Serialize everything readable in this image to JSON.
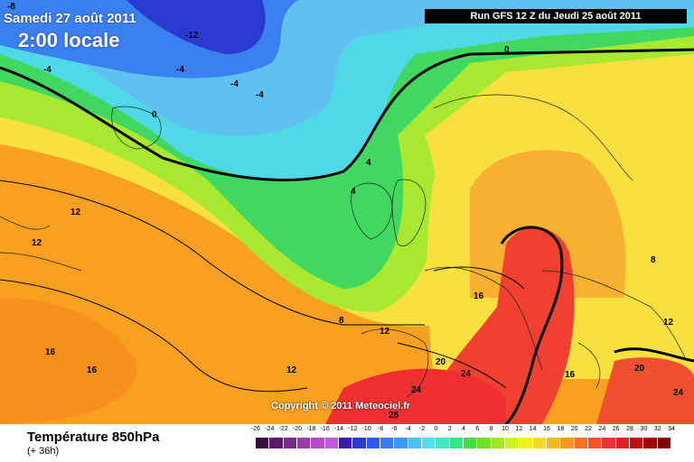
{
  "header": {
    "date": "Samedi 27 août 2011",
    "time": "2:00 locale",
    "run": "Run GFS 12 Z du Jeudi 25 août 2011"
  },
  "footer": {
    "title": "Température 850hPa",
    "forecast": "(+ 36h)",
    "copyright": "Copyright © 2011 Meteociel.fr"
  },
  "legend": {
    "ticks": [
      "-26",
      "-24",
      "-22",
      "-20",
      "-18",
      "-16",
      "-14",
      "-12",
      "-10",
      "-8",
      "-6",
      "-4",
      "-2",
      "0",
      "2",
      "4",
      "6",
      "8",
      "10",
      "12",
      "14",
      "16",
      "18",
      "20",
      "22",
      "24",
      "26",
      "28",
      "30",
      "32",
      "34"
    ],
    "colors": [
      "#3a0a40",
      "#5a1a6a",
      "#7a2a8a",
      "#9a3aaa",
      "#b84ac8",
      "#c05ae0",
      "#3a1ab0",
      "#2a3ad0",
      "#2a5ae8",
      "#3a7af0",
      "#3a9af8",
      "#4ac0f8",
      "#50e0f0",
      "#40e8c0",
      "#30e880",
      "#40e040",
      "#70e020",
      "#a0e820",
      "#d0f020",
      "#f0f020",
      "#f8d820",
      "#f8b820",
      "#f89820",
      "#f87020",
      "#f85028",
      "#f03030",
      "#e02020",
      "#c01010",
      "#a00808",
      "#800000"
    ]
  },
  "contour_labels": [
    {
      "text": "-12"
    },
    {
      "text": "-4"
    },
    {
      "text": "-4"
    },
    {
      "text": "-4"
    },
    {
      "text": "-4"
    },
    {
      "text": "0"
    },
    {
      "text": "0"
    },
    {
      "text": "4"
    },
    {
      "text": "4"
    },
    {
      "text": "8"
    },
    {
      "text": "12"
    },
    {
      "text": "12"
    },
    {
      "text": "12"
    },
    {
      "text": "12"
    },
    {
      "text": "16"
    },
    {
      "text": "16"
    },
    {
      "text": "16"
    },
    {
      "text": "16"
    },
    {
      "text": "20"
    },
    {
      "text": "20"
    },
    {
      "text": "24"
    },
    {
      "text": "24"
    },
    {
      "text": "24"
    },
    {
      "text": "28"
    },
    {
      "text": "8"
    },
    {
      "text": "12"
    },
    {
      "text": "-8"
    }
  ]
}
